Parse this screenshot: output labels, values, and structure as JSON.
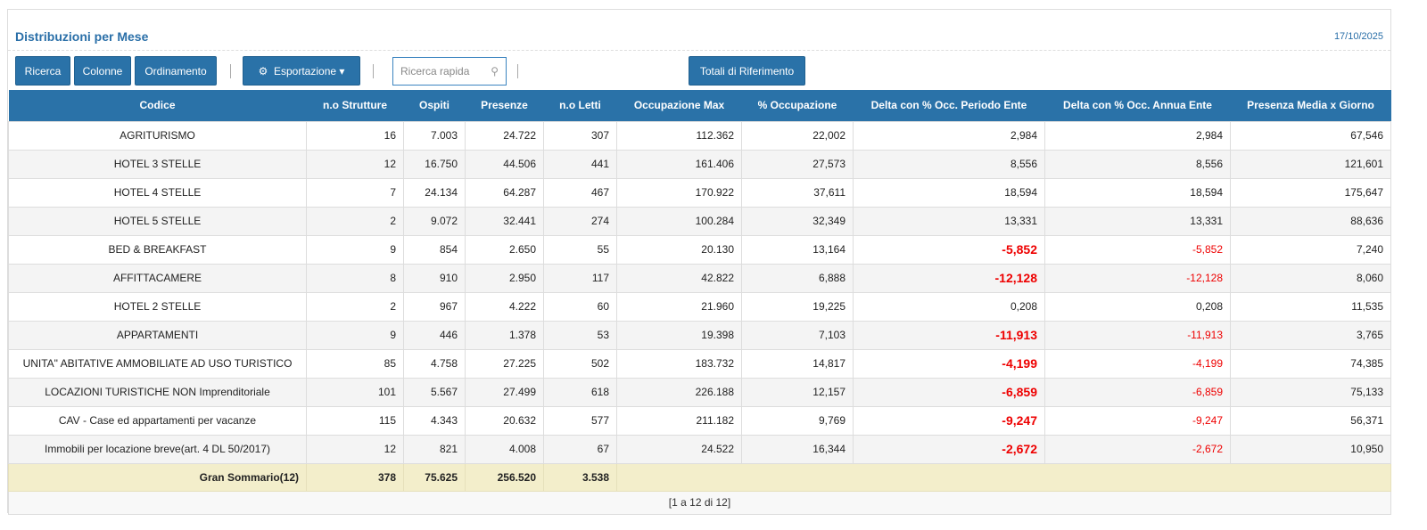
{
  "header": {
    "title": "Distribuzioni per Mese",
    "date": "17/10/2025"
  },
  "toolbar": {
    "ricerca": "Ricerca",
    "colonne": "Colonne",
    "ordinamento": "Ordinamento",
    "esportazione": "Esportazione",
    "search_placeholder": "Ricerca rapida",
    "totali": "Totali di Riferimento"
  },
  "columns": [
    "Codice",
    "n.o Strutture",
    "Ospiti",
    "Presenze",
    "n.o Letti",
    "Occupazione Max",
    "% Occupazione",
    "Delta con % Occ. Periodo Ente",
    "Delta con % Occ. Annua Ente",
    "Presenza Media x Giorno"
  ],
  "rows": [
    [
      "AGRITURISMO",
      "16",
      "7.003",
      "24.722",
      "307",
      "112.362",
      "22,002",
      "2,984",
      "2,984",
      "67,546"
    ],
    [
      "HOTEL 3 STELLE",
      "12",
      "16.750",
      "44.506",
      "441",
      "161.406",
      "27,573",
      "8,556",
      "8,556",
      "121,601"
    ],
    [
      "HOTEL 4 STELLE",
      "7",
      "24.134",
      "64.287",
      "467",
      "170.922",
      "37,611",
      "18,594",
      "18,594",
      "175,647"
    ],
    [
      "HOTEL 5 STELLE",
      "2",
      "9.072",
      "32.441",
      "274",
      "100.284",
      "32,349",
      "13,331",
      "13,331",
      "88,636"
    ],
    [
      "BED & BREAKFAST",
      "9",
      "854",
      "2.650",
      "55",
      "20.130",
      "13,164",
      "-5,852",
      "-5,852",
      "7,240"
    ],
    [
      "AFFITTACAMERE",
      "8",
      "910",
      "2.950",
      "117",
      "42.822",
      "6,888",
      "-12,128",
      "-12,128",
      "8,060"
    ],
    [
      "HOTEL 2 STELLE",
      "2",
      "967",
      "4.222",
      "60",
      "21.960",
      "19,225",
      "0,208",
      "0,208",
      "11,535"
    ],
    [
      "APPARTAMENTI",
      "9",
      "446",
      "1.378",
      "53",
      "19.398",
      "7,103",
      "-11,913",
      "-11,913",
      "3,765"
    ],
    [
      "UNITA\" ABITATIVE AMMOBILIATE AD USO TURISTICO",
      "85",
      "4.758",
      "27.225",
      "502",
      "183.732",
      "14,817",
      "-4,199",
      "-4,199",
      "74,385"
    ],
    [
      "LOCAZIONI TURISTICHE NON Imprenditoriale",
      "101",
      "5.567",
      "27.499",
      "618",
      "226.188",
      "12,157",
      "-6,859",
      "-6,859",
      "75,133"
    ],
    [
      "CAV - Case ed appartamenti per vacanze",
      "115",
      "4.343",
      "20.632",
      "577",
      "211.182",
      "9,769",
      "-9,247",
      "-9,247",
      "56,371"
    ],
    [
      "Immobili per locazione breve(art. 4 DL 50/2017)",
      "12",
      "821",
      "4.008",
      "67",
      "24.522",
      "16,344",
      "-2,672",
      "-2,672",
      "10,950"
    ]
  ],
  "total": {
    "label": "Gran Sommario(12)",
    "strutture": "378",
    "ospiti": "75.625",
    "presenze": "256.520",
    "letti": "3.538"
  },
  "pager": "[1 a 12 di 12]",
  "colors": {
    "accent": "#2a72a8",
    "negative": "#e00000",
    "total_bg": "#f3eecb"
  }
}
